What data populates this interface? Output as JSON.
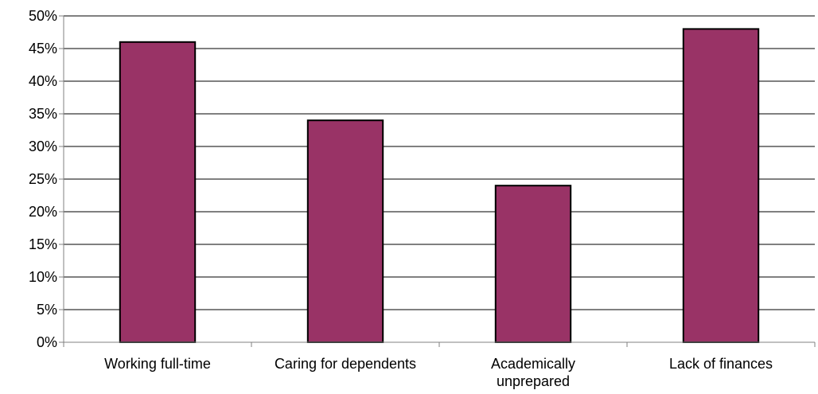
{
  "chart_data": {
    "type": "bar",
    "title": "",
    "xlabel": "",
    "ylabel": "",
    "categories": [
      [
        "Working full-time"
      ],
      [
        "Caring for dependents"
      ],
      [
        "Academically",
        "unprepared"
      ],
      [
        "Lack of finances"
      ]
    ],
    "values": [
      46,
      34,
      24,
      48
    ],
    "ylim": [
      0,
      50
    ],
    "yticks": [
      0,
      5,
      10,
      15,
      20,
      25,
      30,
      35,
      40,
      45,
      50
    ],
    "ytick_suffix": "%",
    "grid": true,
    "legend": "none",
    "colors": {
      "bar_fill": "#993366",
      "bar_stroke": "#000000",
      "gridline": "#000000",
      "axis": "#808080"
    }
  }
}
